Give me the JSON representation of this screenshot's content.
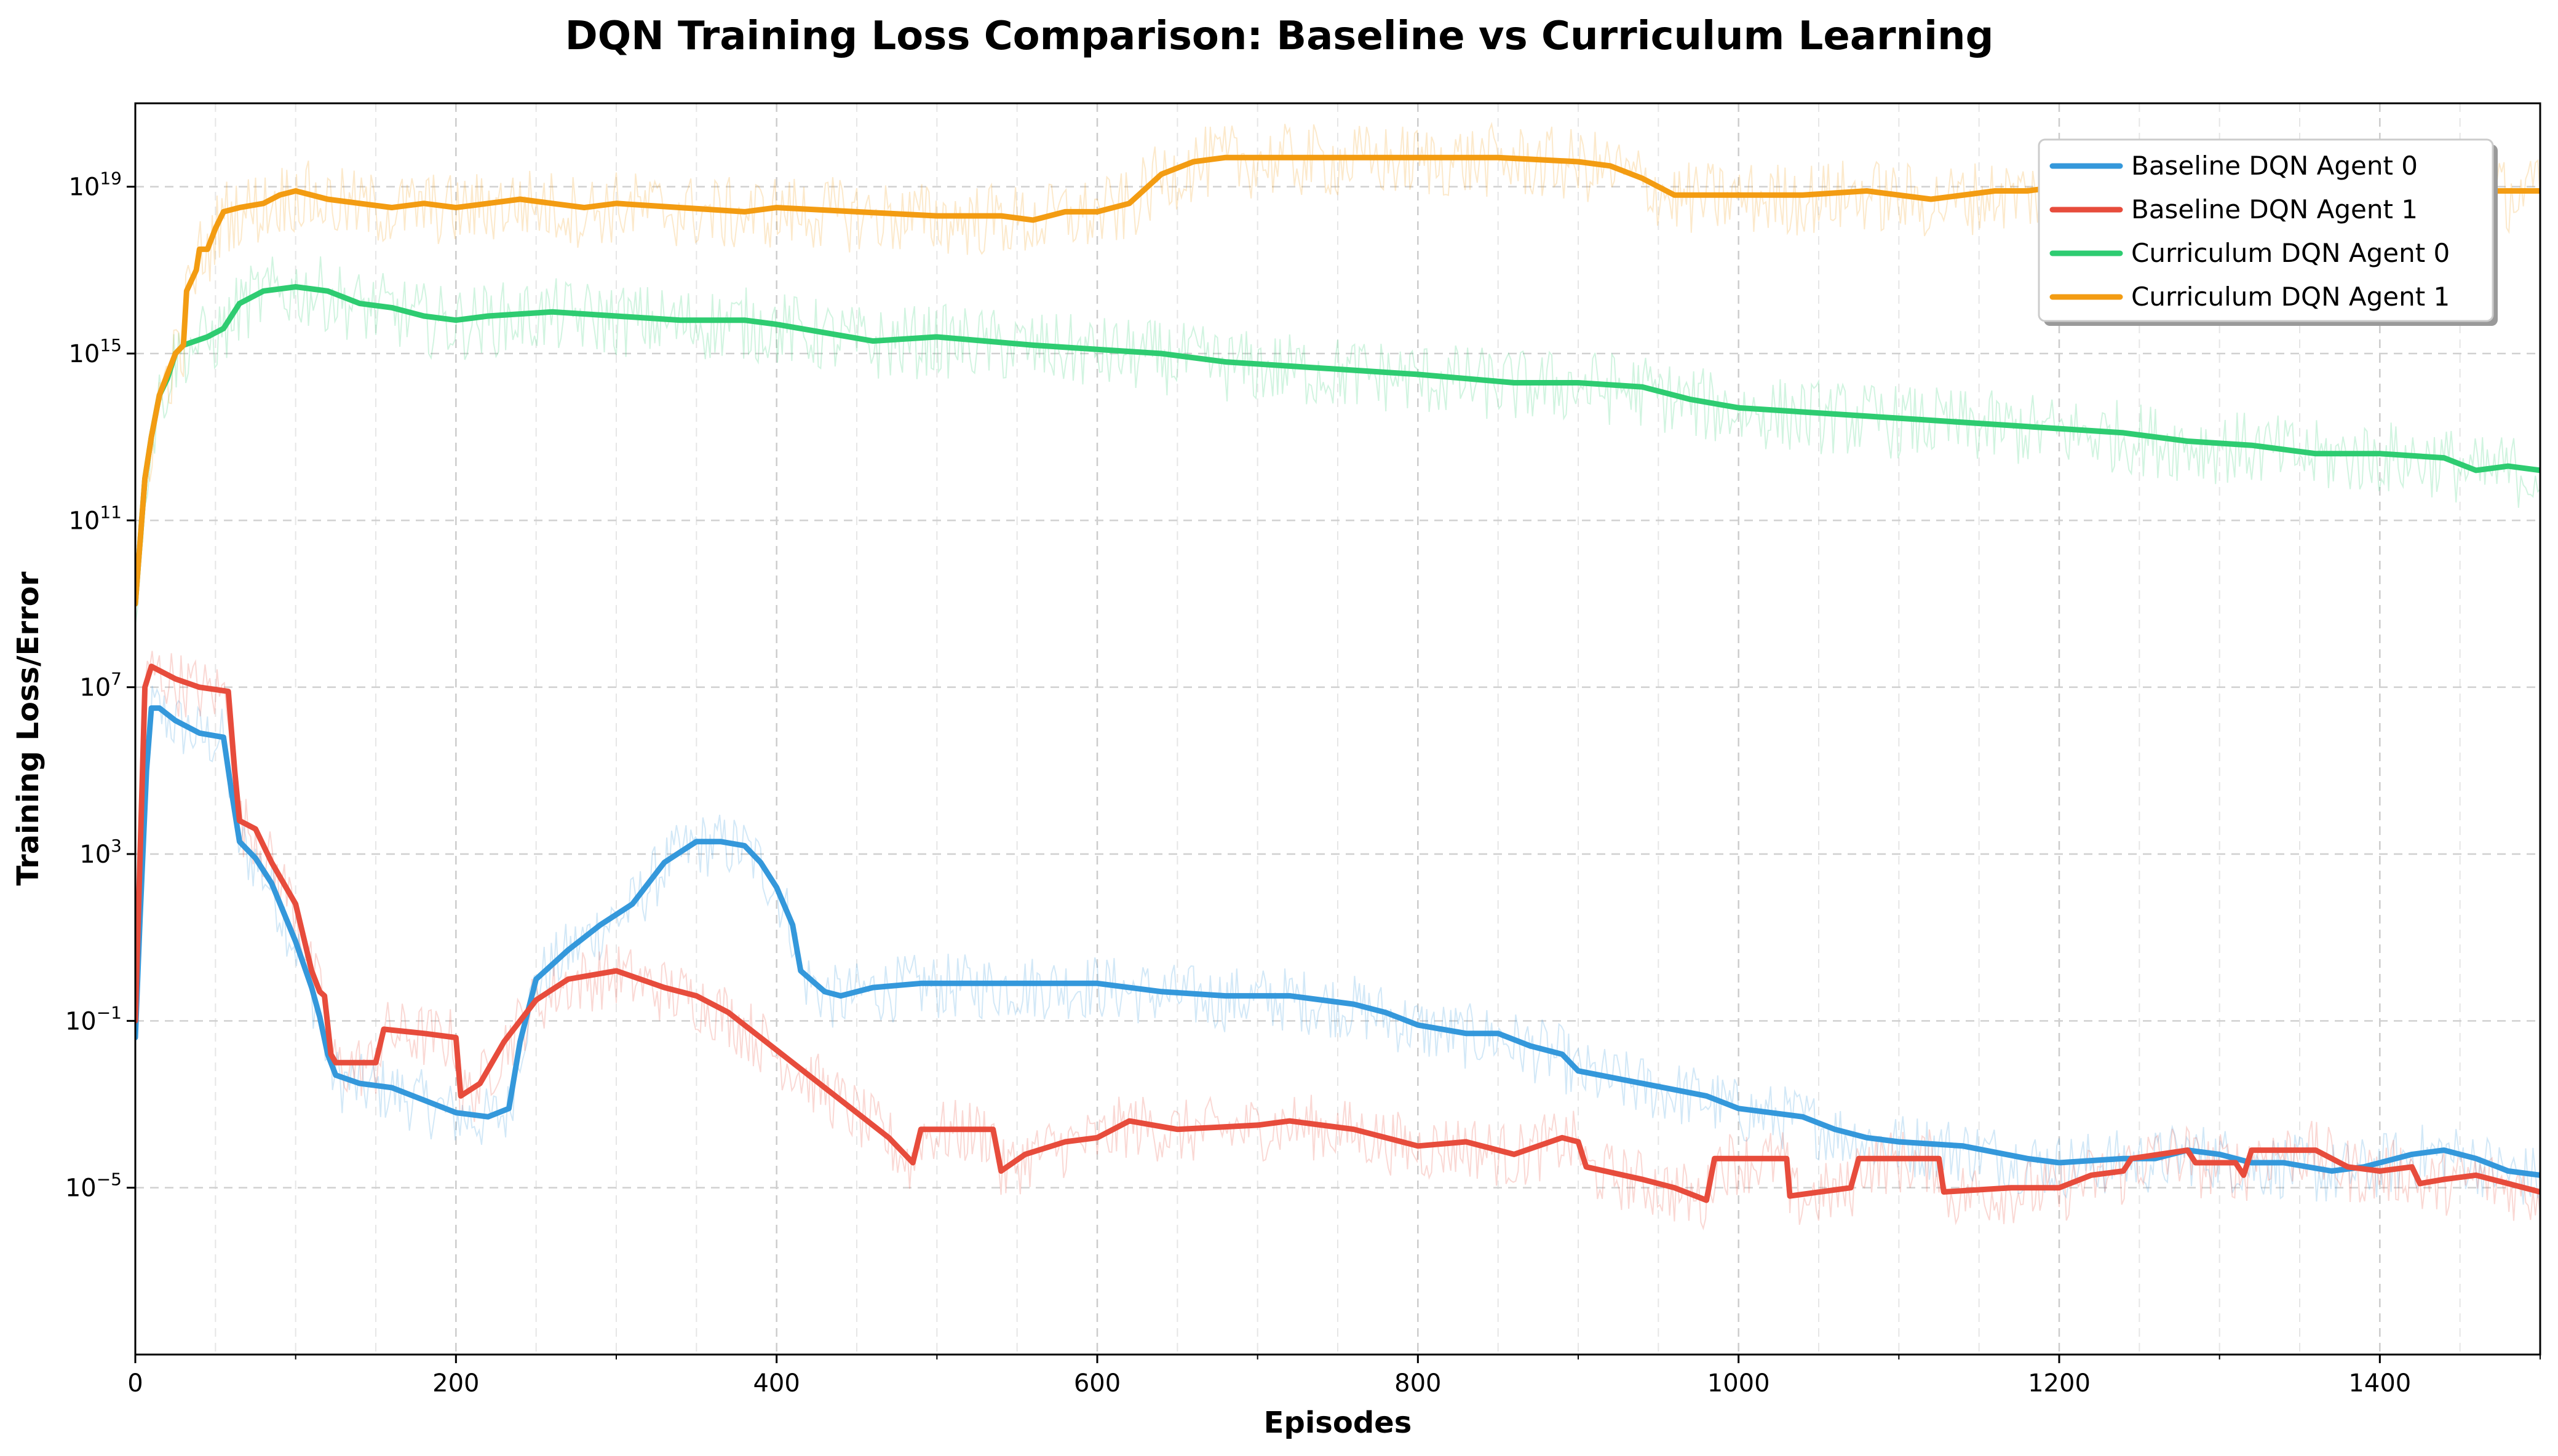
{
  "chart_data": {
    "type": "line",
    "title": "DQN Training Loss Comparison: Baseline vs Curriculum Learning",
    "xlabel": "Episodes",
    "ylabel": "Training Loss/Error",
    "xlim": [
      0,
      1500
    ],
    "ylim_log10": [
      -9,
      21
    ],
    "y_scale": "log",
    "grid": true,
    "legend_position": "top-right",
    "x_ticks": [
      0,
      200,
      400,
      600,
      800,
      1000,
      1200,
      1400
    ],
    "x_tick_labels": [
      "0",
      "200",
      "400",
      "600",
      "800",
      "1000",
      "1200",
      "1400"
    ],
    "y_ticks_log10": [
      -5,
      -1,
      3,
      7,
      11,
      15,
      19
    ],
    "y_tick_labels": [
      {
        "base": "10",
        "exp": "−5"
      },
      {
        "base": "10",
        "exp": "−1"
      },
      {
        "base": "10",
        "exp": "3"
      },
      {
        "base": "10",
        "exp": "7"
      },
      {
        "base": "10",
        "exp": "11"
      },
      {
        "base": "10",
        "exp": "15"
      },
      {
        "base": "10",
        "exp": "19"
      }
    ],
    "series": [
      {
        "name": "Baseline DQN Agent 0",
        "color": "#3498db",
        "points_log10": [
          [
            0,
            -1.4
          ],
          [
            3,
            1.5
          ],
          [
            7,
            5.0
          ],
          [
            10,
            6.5
          ],
          [
            15,
            6.5
          ],
          [
            25,
            6.2
          ],
          [
            40,
            5.9
          ],
          [
            55,
            5.8
          ],
          [
            60,
            4.5
          ],
          [
            65,
            3.3
          ],
          [
            75,
            2.9
          ],
          [
            85,
            2.3
          ],
          [
            100,
            0.9
          ],
          [
            110,
            -0.2
          ],
          [
            115,
            -0.9
          ],
          [
            120,
            -1.8
          ],
          [
            125,
            -2.3
          ],
          [
            140,
            -2.5
          ],
          [
            160,
            -2.6
          ],
          [
            180,
            -2.9
          ],
          [
            200,
            -3.2
          ],
          [
            220,
            -3.3
          ],
          [
            233,
            -3.1
          ],
          [
            240,
            -1.5
          ],
          [
            250,
            0.0
          ],
          [
            270,
            0.7
          ],
          [
            290,
            1.3
          ],
          [
            310,
            1.8
          ],
          [
            330,
            2.8
          ],
          [
            350,
            3.3
          ],
          [
            365,
            3.3
          ],
          [
            380,
            3.2
          ],
          [
            390,
            2.8
          ],
          [
            400,
            2.2
          ],
          [
            410,
            1.3
          ],
          [
            415,
            0.2
          ],
          [
            430,
            -0.3
          ],
          [
            440,
            -0.4
          ],
          [
            460,
            -0.2
          ],
          [
            490,
            -0.1
          ],
          [
            520,
            -0.1
          ],
          [
            560,
            -0.1
          ],
          [
            600,
            -0.1
          ],
          [
            640,
            -0.3
          ],
          [
            680,
            -0.4
          ],
          [
            720,
            -0.4
          ],
          [
            760,
            -0.6
          ],
          [
            780,
            -0.8
          ],
          [
            800,
            -1.1
          ],
          [
            830,
            -1.3
          ],
          [
            850,
            -1.3
          ],
          [
            870,
            -1.6
          ],
          [
            890,
            -1.8
          ],
          [
            900,
            -2.2
          ],
          [
            940,
            -2.5
          ],
          [
            980,
            -2.8
          ],
          [
            1000,
            -3.1
          ],
          [
            1040,
            -3.3
          ],
          [
            1060,
            -3.6
          ],
          [
            1080,
            -3.8
          ],
          [
            1100,
            -3.9
          ],
          [
            1140,
            -4.0
          ],
          [
            1180,
            -4.3
          ],
          [
            1200,
            -4.4
          ],
          [
            1240,
            -4.3
          ],
          [
            1260,
            -4.3
          ],
          [
            1280,
            -4.1
          ],
          [
            1300,
            -4.2
          ],
          [
            1320,
            -4.4
          ],
          [
            1340,
            -4.4
          ],
          [
            1370,
            -4.6
          ],
          [
            1390,
            -4.5
          ],
          [
            1420,
            -4.2
          ],
          [
            1440,
            -4.1
          ],
          [
            1460,
            -4.3
          ],
          [
            1480,
            -4.6
          ],
          [
            1500,
            -4.7
          ]
        ]
      },
      {
        "name": "Baseline DQN Agent 1",
        "color": "#e74c3c",
        "points_log10": [
          [
            0,
            -1.0
          ],
          [
            3,
            3.0
          ],
          [
            6,
            7.0
          ],
          [
            10,
            7.5
          ],
          [
            25,
            7.2
          ],
          [
            40,
            7.0
          ],
          [
            58,
            6.9
          ],
          [
            62,
            5.0
          ],
          [
            65,
            3.8
          ],
          [
            75,
            3.6
          ],
          [
            85,
            2.8
          ],
          [
            100,
            1.8
          ],
          [
            110,
            0.2
          ],
          [
            115,
            -0.3
          ],
          [
            118,
            -0.4
          ],
          [
            122,
            -1.8
          ],
          [
            125,
            -2.0
          ],
          [
            150,
            -2.0
          ],
          [
            155,
            -1.2
          ],
          [
            180,
            -1.3
          ],
          [
            200,
            -1.4
          ],
          [
            203,
            -2.8
          ],
          [
            215,
            -2.5
          ],
          [
            230,
            -1.5
          ],
          [
            250,
            -0.5
          ],
          [
            270,
            0.0
          ],
          [
            300,
            0.2
          ],
          [
            330,
            -0.2
          ],
          [
            350,
            -0.4
          ],
          [
            370,
            -0.8
          ],
          [
            390,
            -1.4
          ],
          [
            410,
            -2.0
          ],
          [
            430,
            -2.6
          ],
          [
            450,
            -3.2
          ],
          [
            470,
            -3.8
          ],
          [
            485,
            -4.4
          ],
          [
            490,
            -3.6
          ],
          [
            520,
            -3.6
          ],
          [
            535,
            -3.6
          ],
          [
            540,
            -4.6
          ],
          [
            555,
            -4.2
          ],
          [
            580,
            -3.9
          ],
          [
            600,
            -3.8
          ],
          [
            620,
            -3.4
          ],
          [
            650,
            -3.6
          ],
          [
            700,
            -3.5
          ],
          [
            720,
            -3.4
          ],
          [
            760,
            -3.6
          ],
          [
            800,
            -4.0
          ],
          [
            830,
            -3.9
          ],
          [
            860,
            -4.2
          ],
          [
            890,
            -3.8
          ],
          [
            900,
            -3.9
          ],
          [
            905,
            -4.5
          ],
          [
            940,
            -4.8
          ],
          [
            960,
            -5.0
          ],
          [
            980,
            -5.3
          ],
          [
            985,
            -4.3
          ],
          [
            1030,
            -4.3
          ],
          [
            1032,
            -5.2
          ],
          [
            1070,
            -5.0
          ],
          [
            1075,
            -4.3
          ],
          [
            1125,
            -4.3
          ],
          [
            1128,
            -5.1
          ],
          [
            1170,
            -5.0
          ],
          [
            1200,
            -5.0
          ],
          [
            1220,
            -4.7
          ],
          [
            1240,
            -4.6
          ],
          [
            1245,
            -4.3
          ],
          [
            1280,
            -4.1
          ],
          [
            1285,
            -4.4
          ],
          [
            1310,
            -4.4
          ],
          [
            1315,
            -4.7
          ],
          [
            1320,
            -4.1
          ],
          [
            1360,
            -4.1
          ],
          [
            1380,
            -4.5
          ],
          [
            1400,
            -4.6
          ],
          [
            1420,
            -4.5
          ],
          [
            1425,
            -4.9
          ],
          [
            1440,
            -4.8
          ],
          [
            1460,
            -4.7
          ],
          [
            1480,
            -4.9
          ],
          [
            1500,
            -5.1
          ]
        ]
      },
      {
        "name": "Curriculum DQN Agent 0",
        "color": "#2ecc71",
        "points_log10": [
          [
            0,
            9.0
          ],
          [
            3,
            10.5
          ],
          [
            6,
            12.0
          ],
          [
            10,
            13.0
          ],
          [
            15,
            14.0
          ],
          [
            20,
            14.4
          ],
          [
            25,
            15.0
          ],
          [
            30,
            15.2
          ],
          [
            45,
            15.4
          ],
          [
            55,
            15.6
          ],
          [
            65,
            16.2
          ],
          [
            80,
            16.5
          ],
          [
            100,
            16.6
          ],
          [
            120,
            16.5
          ],
          [
            140,
            16.2
          ],
          [
            160,
            16.1
          ],
          [
            180,
            15.9
          ],
          [
            200,
            15.8
          ],
          [
            220,
            15.9
          ],
          [
            260,
            16.0
          ],
          [
            300,
            15.9
          ],
          [
            340,
            15.8
          ],
          [
            380,
            15.8
          ],
          [
            400,
            15.7
          ],
          [
            430,
            15.5
          ],
          [
            460,
            15.3
          ],
          [
            500,
            15.4
          ],
          [
            530,
            15.3
          ],
          [
            560,
            15.2
          ],
          [
            600,
            15.1
          ],
          [
            640,
            15.0
          ],
          [
            680,
            14.8
          ],
          [
            720,
            14.7
          ],
          [
            760,
            14.6
          ],
          [
            800,
            14.5
          ],
          [
            830,
            14.4
          ],
          [
            860,
            14.3
          ],
          [
            900,
            14.3
          ],
          [
            940,
            14.2
          ],
          [
            970,
            13.9
          ],
          [
            1000,
            13.7
          ],
          [
            1040,
            13.6
          ],
          [
            1080,
            13.5
          ],
          [
            1120,
            13.4
          ],
          [
            1160,
            13.3
          ],
          [
            1200,
            13.2
          ],
          [
            1240,
            13.1
          ],
          [
            1280,
            12.9
          ],
          [
            1320,
            12.8
          ],
          [
            1360,
            12.6
          ],
          [
            1400,
            12.6
          ],
          [
            1440,
            12.5
          ],
          [
            1460,
            12.2
          ],
          [
            1480,
            12.3
          ],
          [
            1500,
            12.2
          ]
        ]
      },
      {
        "name": "Curriculum DQN Agent 1",
        "color": "#f39c12",
        "points_log10": [
          [
            0,
            9.0
          ],
          [
            3,
            10.5
          ],
          [
            6,
            12.0
          ],
          [
            10,
            13.0
          ],
          [
            15,
            14.0
          ],
          [
            20,
            14.5
          ],
          [
            25,
            15.0
          ],
          [
            30,
            15.2
          ],
          [
            32,
            16.5
          ],
          [
            38,
            17.0
          ],
          [
            40,
            17.5
          ],
          [
            45,
            17.5
          ],
          [
            50,
            18.0
          ],
          [
            55,
            18.4
          ],
          [
            65,
            18.5
          ],
          [
            80,
            18.6
          ],
          [
            90,
            18.8
          ],
          [
            100,
            18.9
          ],
          [
            120,
            18.7
          ],
          [
            140,
            18.6
          ],
          [
            160,
            18.5
          ],
          [
            180,
            18.6
          ],
          [
            200,
            18.5
          ],
          [
            220,
            18.6
          ],
          [
            240,
            18.7
          ],
          [
            260,
            18.6
          ],
          [
            280,
            18.5
          ],
          [
            300,
            18.6
          ],
          [
            340,
            18.5
          ],
          [
            380,
            18.4
          ],
          [
            400,
            18.5
          ],
          [
            450,
            18.4
          ],
          [
            500,
            18.3
          ],
          [
            540,
            18.3
          ],
          [
            560,
            18.2
          ],
          [
            580,
            18.4
          ],
          [
            600,
            18.4
          ],
          [
            620,
            18.6
          ],
          [
            640,
            19.3
          ],
          [
            660,
            19.6
          ],
          [
            680,
            19.7
          ],
          [
            720,
            19.7
          ],
          [
            760,
            19.7
          ],
          [
            800,
            19.7
          ],
          [
            850,
            19.7
          ],
          [
            900,
            19.6
          ],
          [
            920,
            19.5
          ],
          [
            940,
            19.2
          ],
          [
            960,
            18.8
          ],
          [
            1000,
            18.8
          ],
          [
            1040,
            18.8
          ],
          [
            1080,
            18.9
          ],
          [
            1120,
            18.7
          ],
          [
            1160,
            18.9
          ],
          [
            1180,
            18.9
          ],
          [
            1200,
            19.0
          ],
          [
            1240,
            18.9
          ],
          [
            1280,
            18.9
          ],
          [
            1320,
            18.8
          ],
          [
            1360,
            18.7
          ],
          [
            1400,
            18.8
          ],
          [
            1440,
            18.9
          ],
          [
            1480,
            18.9
          ],
          [
            1500,
            18.9
          ]
        ]
      }
    ]
  }
}
